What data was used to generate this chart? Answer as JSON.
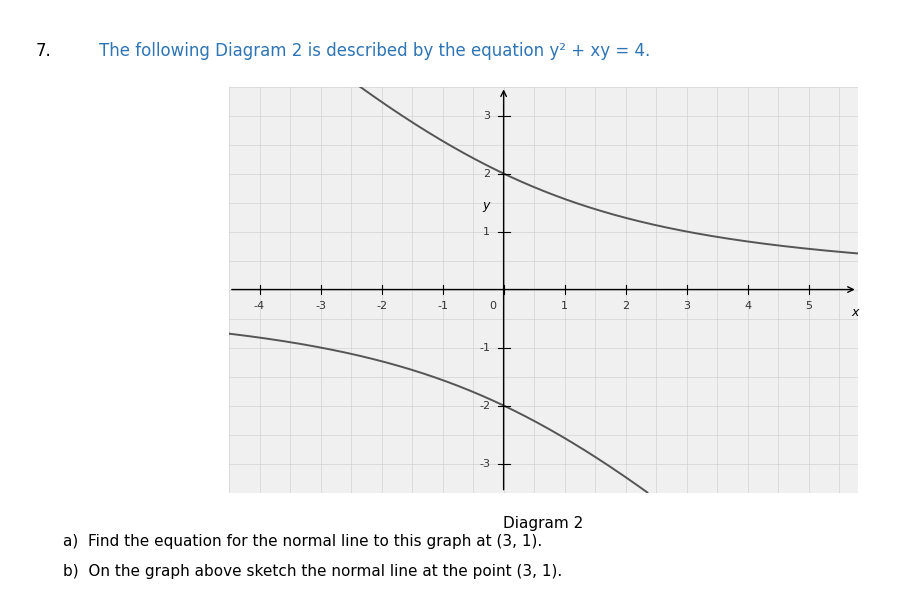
{
  "title_number": "7.",
  "title_text": "The following Diagram 2 is described by the equation y² + xy = 4.",
  "title_color": "#2e75b6",
  "title_black": "#000000",
  "diagram_label": "Diagram 2",
  "question_a": "a)  Find the equation for the normal line to this graph at (3, 1).",
  "question_b": "b)  On the graph above sketch the normal line at the point (3, 1).",
  "xmin": -4.5,
  "xmax": 5.8,
  "ymin": -3.5,
  "ymax": 3.5,
  "xticks": [
    -4,
    -3,
    -2,
    -1,
    0,
    1,
    2,
    3,
    4,
    5
  ],
  "yticks": [
    -3,
    -2,
    -1,
    1,
    2,
    3
  ],
  "xlabel": "x",
  "ylabel": "y",
  "curve_color": "#555555",
  "grid_color": "#cccccc",
  "axis_color": "#000000",
  "background_color": "#f0f0f0",
  "figure_background": "#ffffff",
  "curve_linewidth": 1.4,
  "axis_linewidth": 1.0,
  "tick_fontsize": 8,
  "label_fontsize": 9
}
